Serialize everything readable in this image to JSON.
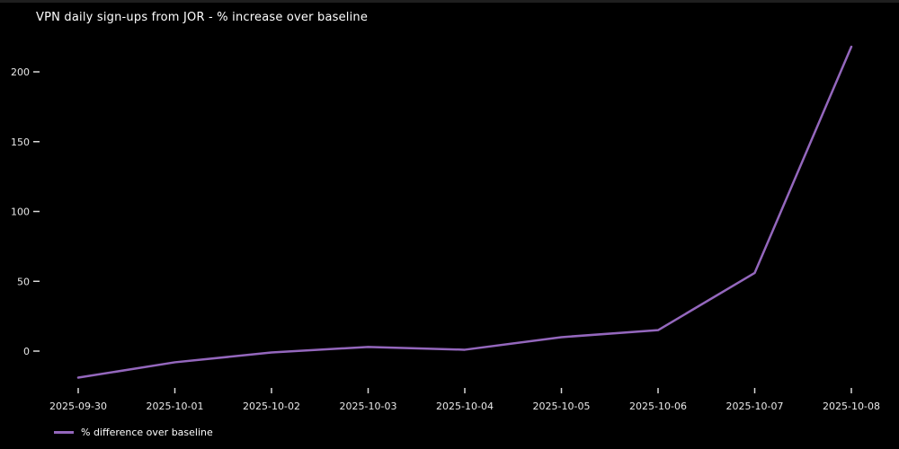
{
  "chart_data": {
    "type": "line",
    "title": "VPN daily sign-ups from JOR - % increase over baseline",
    "categories": [
      "2025-09-30",
      "2025-10-01",
      "2025-10-02",
      "2025-10-03",
      "2025-10-04",
      "2025-10-05",
      "2025-10-06",
      "2025-10-07",
      "2025-10-08"
    ],
    "series": [
      {
        "name": "% difference over baseline",
        "values": [
          -19,
          -8,
          -1,
          3,
          1,
          10,
          15,
          56,
          218
        ]
      }
    ],
    "xlabel": "",
    "ylabel": "",
    "yticks": [
      0,
      50,
      100,
      150,
      200
    ],
    "ylim": [
      -32,
      230
    ],
    "grid": false,
    "legend_position": "lower-left",
    "colors": {
      "background": "#000000",
      "line": "#9467bd",
      "title_text": "#ffffff",
      "tick_text": "#e8e8e8",
      "tick_mark": "#d9d9d9"
    }
  }
}
